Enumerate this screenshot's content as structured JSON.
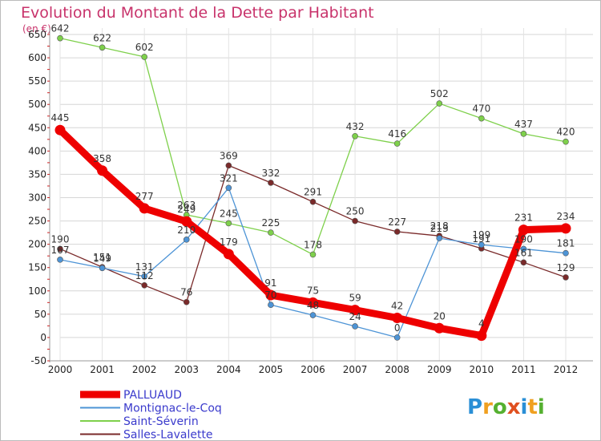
{
  "title": "Evolution du Montant de la Dette par Habitant",
  "unit_label": "(en €)",
  "brand": {
    "letters": [
      "P",
      "r",
      "o",
      "x",
      "i",
      "t",
      "i"
    ],
    "colors": [
      "#2a8fd6",
      "#f0a020",
      "#55b030",
      "#e05020",
      "#2a8fd6",
      "#f0a020",
      "#55b030"
    ]
  },
  "chart_data": {
    "type": "line",
    "title": "Evolution du Montant de la Dette par Habitant",
    "ylabel": "(en €)",
    "xlabel": "",
    "x": [
      "2000",
      "2001",
      "2002",
      "2003",
      "2004",
      "2005",
      "2006",
      "2007",
      "2008",
      "2009",
      "2010",
      "2011",
      "2012"
    ],
    "yticks": [
      "-50",
      "0",
      "50",
      "100",
      "150",
      "200",
      "250",
      "300",
      "350",
      "400",
      "450",
      "500",
      "550",
      "600",
      "650"
    ],
    "ylim": [
      -50,
      650
    ],
    "grid": true,
    "legend_position": "bottom-left",
    "series": [
      {
        "name": "PALLUAUD",
        "color": "#ee0000",
        "values": [
          445,
          358,
          277,
          249,
          179,
          91,
          75,
          59,
          42,
          20,
          4,
          231,
          234
        ]
      },
      {
        "name": "Montignac-le-Coq",
        "color": "#4d94d6",
        "values": [
          167,
          149,
          131,
          210,
          321,
          70,
          48,
          24,
          0,
          213,
          199,
          190,
          181
        ]
      },
      {
        "name": "Saint-Séverin",
        "color": "#7ed04b",
        "values": [
          642,
          622,
          602,
          263,
          245,
          225,
          178,
          432,
          416,
          502,
          470,
          437,
          420
        ]
      },
      {
        "name": "Salles-Lavalette",
        "color": "#7a2a2a",
        "values": [
          190,
          151,
          112,
          76,
          369,
          332,
          291,
          250,
          227,
          218,
          191,
          161,
          129
        ]
      }
    ]
  }
}
